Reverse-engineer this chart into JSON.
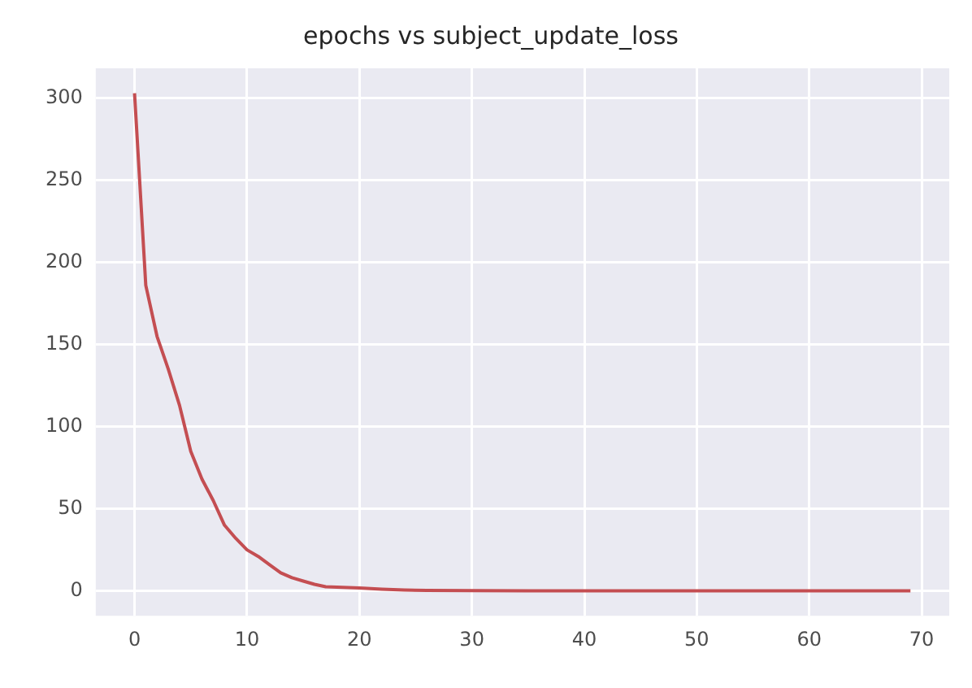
{
  "chart_data": {
    "type": "line",
    "title": "epochs vs subject_update_loss",
    "x": [
      0,
      1,
      2,
      3,
      4,
      5,
      6,
      7,
      8,
      9,
      10,
      11,
      12,
      13,
      14,
      15,
      16,
      17,
      18,
      19,
      20,
      22,
      24,
      26,
      30,
      35,
      40,
      50,
      60,
      69
    ],
    "series": [
      {
        "color": "#c44e52",
        "values": [
          303,
          186,
          155,
          135,
          113,
          85,
          68,
          55,
          40,
          32,
          25,
          21,
          16,
          11,
          8,
          6,
          4,
          2.5,
          2.3,
          2,
          1.8,
          1,
          0.5,
          0.3,
          0.2,
          0.1,
          0.1,
          0,
          0,
          0
        ]
      }
    ],
    "xlim": [
      -3.45,
      72.45
    ],
    "xticks": [
      0,
      10,
      20,
      30,
      40,
      50,
      60,
      70
    ],
    "ylim": [
      -15.15,
      318.15
    ],
    "yticks": [
      0,
      50,
      100,
      150,
      200,
      250,
      300
    ],
    "grid": true,
    "legend": false,
    "marker": "none",
    "line_style": "solid"
  }
}
